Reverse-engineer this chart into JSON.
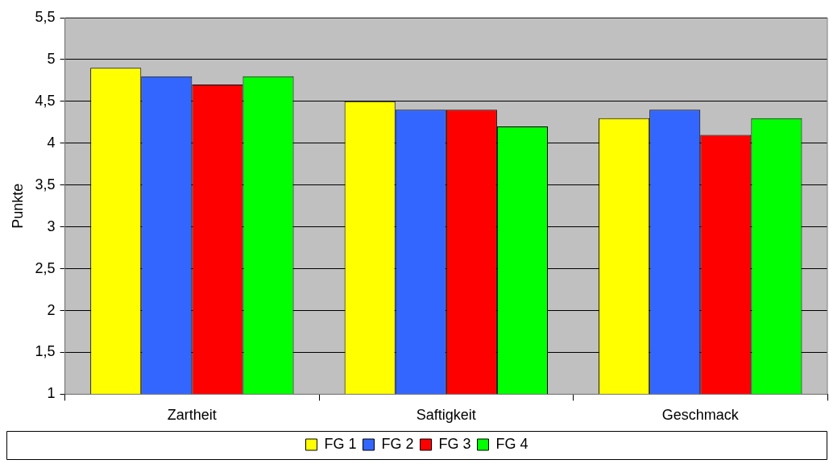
{
  "chart_data": {
    "type": "bar",
    "ylabel": "Punkte",
    "categories": [
      "Zartheit",
      "Saftigkeit",
      "Geschmack"
    ],
    "series": [
      {
        "name": "FG 1",
        "color": "#ffff00",
        "values": [
          4.9,
          4.5,
          4.3
        ]
      },
      {
        "name": "FG 2",
        "color": "#3366ff",
        "values": [
          4.8,
          4.4,
          4.4
        ]
      },
      {
        "name": "FG 3",
        "color": "#ff0000",
        "values": [
          4.7,
          4.4,
          4.1
        ]
      },
      {
        "name": "FG 4",
        "color": "#00ff00",
        "values": [
          4.8,
          4.2,
          4.3
        ]
      }
    ],
    "ylim": [
      1,
      5.5
    ],
    "yticks": [
      1,
      {
        "value": 1.5,
        "label": "1,5"
      },
      2,
      {
        "value": 2.5,
        "label": "2,5"
      },
      3,
      {
        "value": 3.5,
        "label": "3,5"
      },
      4,
      {
        "value": 4.5,
        "label": "4,5"
      },
      5,
      {
        "value": 5.5,
        "label": "5,5"
      }
    ],
    "grid": "y",
    "legend": "bottom"
  }
}
